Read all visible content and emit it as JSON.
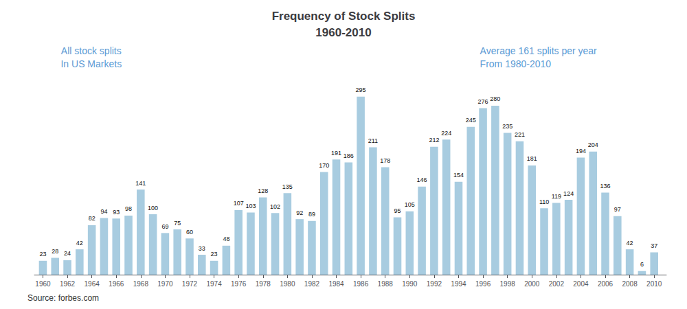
{
  "chart_data": {
    "type": "bar",
    "title": "Frequency of Stock Splits",
    "subtitle": "1960-2010",
    "annotations": [
      "All stock splits\nIn US Markets",
      "Average 161 splits per year\nFrom 1980-2010",
      "Source: forbes.com"
    ],
    "x": [
      1960,
      1961,
      1962,
      1963,
      1964,
      1965,
      1966,
      1967,
      1968,
      1969,
      1970,
      1971,
      1972,
      1973,
      1974,
      1975,
      1976,
      1977,
      1978,
      1979,
      1980,
      1981,
      1982,
      1983,
      1984,
      1985,
      1986,
      1987,
      1988,
      1989,
      1990,
      1991,
      1992,
      1993,
      1994,
      1995,
      1996,
      1997,
      1998,
      1999,
      2000,
      2001,
      2002,
      2003,
      2004,
      2005,
      2006,
      2007,
      2008,
      2009,
      2010
    ],
    "values": [
      23,
      28,
      24,
      42,
      82,
      94,
      93,
      98,
      141,
      100,
      69,
      75,
      60,
      33,
      23,
      48,
      107,
      103,
      128,
      102,
      135,
      92,
      89,
      170,
      191,
      186,
      295,
      211,
      178,
      95,
      105,
      146,
      212,
      224,
      154,
      245,
      276,
      280,
      235,
      221,
      181,
      110,
      119,
      124,
      194,
      204,
      136,
      97,
      42,
      6,
      37
    ],
    "color": "#a8cce0",
    "xlim": [
      1959.3,
      2011.0
    ],
    "xticks": [
      1960,
      1962,
      1964,
      1966,
      1968,
      1970,
      1972,
      1974,
      1976,
      1978,
      1980,
      1982,
      1984,
      1986,
      1988,
      1990,
      1992,
      1994,
      1996,
      1998,
      2000,
      2002,
      2004,
      2006,
      2008,
      2010
    ],
    "ylim": [
      0,
      330
    ],
    "grid": false,
    "data_labels": true,
    "tick_labels": "x"
  }
}
